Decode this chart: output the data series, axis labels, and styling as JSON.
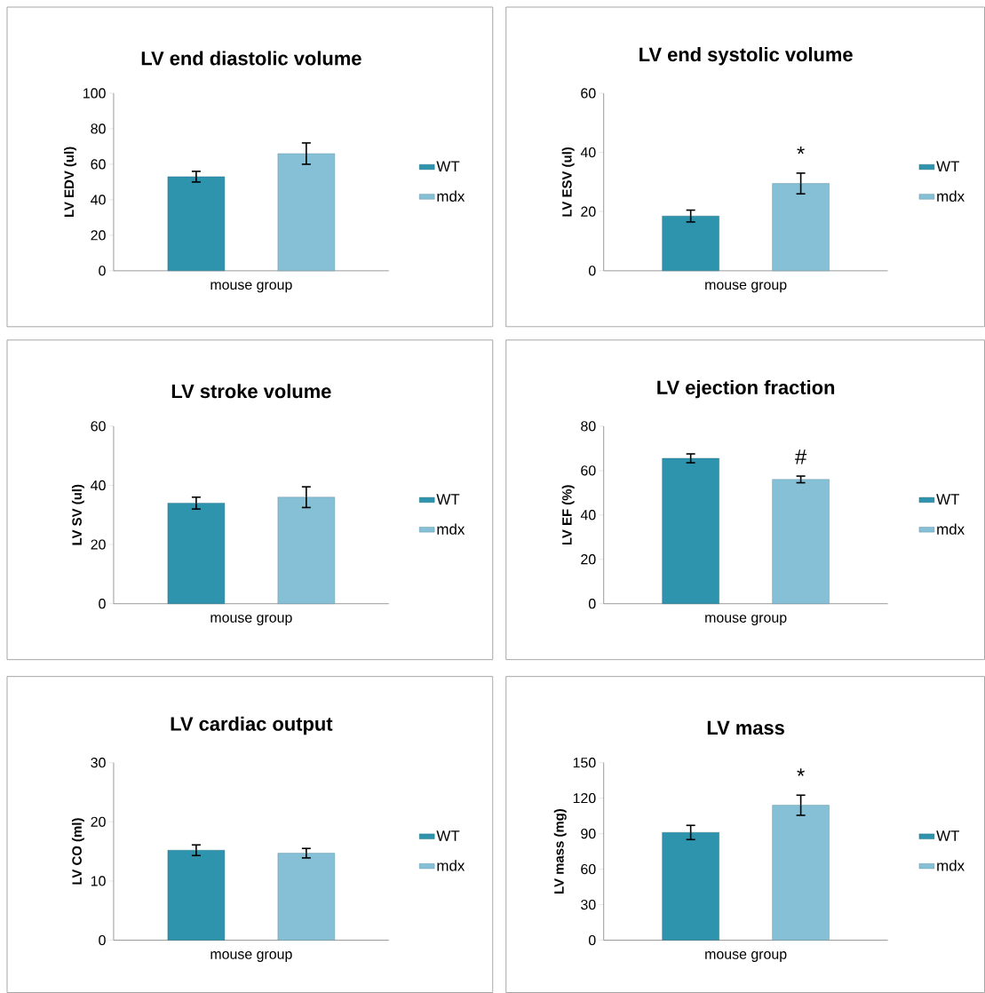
{
  "chart_data": [
    {
      "type": "bar",
      "title": "LV end diastolic volume",
      "xlabel": "mouse group",
      "ylabel": "LV EDV (ul)",
      "categories": [
        null
      ],
      "legend": "right",
      "ylim": [
        0,
        100
      ],
      "yticks": [
        0,
        20,
        40,
        60,
        80,
        100
      ],
      "series": [
        {
          "name": "WT",
          "color": "#2e93ad",
          "values": [
            53
          ],
          "errors": [
            3
          ]
        },
        {
          "name": "mdx",
          "color": "#85c0d6",
          "values": [
            66
          ],
          "errors": [
            6
          ]
        }
      ]
    },
    {
      "type": "bar",
      "title": "LV end systolic volume",
      "xlabel": "mouse group",
      "ylabel": "LV ESV (ul)",
      "categories": [
        null
      ],
      "legend": "right",
      "ylim": [
        0,
        60
      ],
      "yticks": [
        0,
        20,
        40,
        60
      ],
      "annotations": [
        "*"
      ],
      "series": [
        {
          "name": "WT",
          "color": "#2e93ad",
          "values": [
            18.5
          ],
          "errors": [
            2
          ]
        },
        {
          "name": "mdx",
          "color": "#85c0d6",
          "values": [
            29.5
          ],
          "errors": [
            3.5
          ]
        }
      ]
    },
    {
      "type": "bar",
      "title": "LV stroke volume",
      "xlabel": "mouse group",
      "ylabel": "LV SV (ul)",
      "categories": [
        null
      ],
      "legend": "right",
      "ylim": [
        0,
        60
      ],
      "yticks": [
        0,
        20,
        40,
        60
      ],
      "series": [
        {
          "name": "WT",
          "color": "#2e93ad",
          "values": [
            34
          ],
          "errors": [
            2
          ]
        },
        {
          "name": "mdx",
          "color": "#85c0d6",
          "values": [
            36
          ],
          "errors": [
            3.5
          ]
        }
      ]
    },
    {
      "type": "bar",
      "title": "LV ejection fraction",
      "xlabel": "mouse group",
      "ylabel": "LV EF (%)",
      "categories": [
        null
      ],
      "legend": "right",
      "ylim": [
        0,
        80
      ],
      "yticks": [
        0,
        20,
        40,
        60,
        80
      ],
      "annotations": [
        "#"
      ],
      "series": [
        {
          "name": "WT",
          "color": "#2e93ad",
          "values": [
            65.5
          ],
          "errors": [
            2
          ]
        },
        {
          "name": "mdx",
          "color": "#85c0d6",
          "values": [
            56
          ],
          "errors": [
            1.5
          ]
        }
      ]
    },
    {
      "type": "bar",
      "title": "LV cardiac output",
      "xlabel": "mouse group",
      "ylabel": "LV CO (ml)",
      "categories": [
        null
      ],
      "legend": "right",
      "ylim": [
        0,
        30
      ],
      "yticks": [
        0,
        10,
        20,
        30
      ],
      "series": [
        {
          "name": "WT",
          "color": "#2e93ad",
          "values": [
            15.2
          ],
          "errors": [
            0.9
          ]
        },
        {
          "name": "mdx",
          "color": "#85c0d6",
          "values": [
            14.7
          ],
          "errors": [
            0.8
          ]
        }
      ]
    },
    {
      "type": "bar",
      "title": "LV mass",
      "xlabel": "mouse group",
      "ylabel": "LV mass (mg)",
      "categories": [
        null
      ],
      "legend": "right",
      "ylim": [
        0,
        150
      ],
      "yticks": [
        0,
        30,
        60,
        90,
        120,
        150
      ],
      "annotations": [
        "*"
      ],
      "series": [
        {
          "name": "WT",
          "color": "#2e93ad",
          "values": [
            91
          ],
          "errors": [
            6
          ]
        },
        {
          "name": "mdx",
          "color": "#85c0d6",
          "values": [
            114
          ],
          "errors": [
            8.5
          ]
        }
      ]
    }
  ]
}
